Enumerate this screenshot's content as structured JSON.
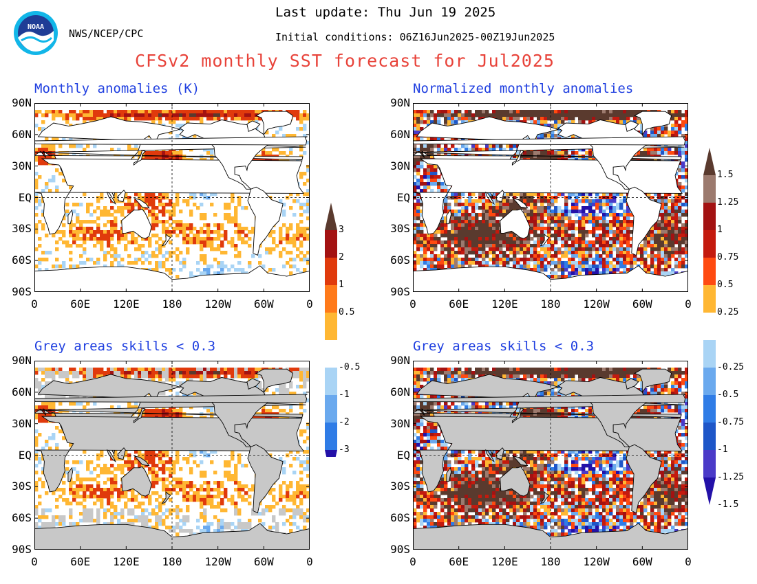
{
  "header": {
    "agency": "NWS/NCEP/CPC",
    "last_update": "Last update: Thu Jun 19 2025",
    "init_conditions": "Initial conditions: 06Z16Jun2025-00Z19Jun2025",
    "title": "CFSv2 monthly SST forecast for Jul2025",
    "logo_text": "NOAA"
  },
  "panels": [
    {
      "id": "tl",
      "title": "Monthly anomalies (K)"
    },
    {
      "id": "tr",
      "title": "Normalized monthly anomalies"
    },
    {
      "id": "bl",
      "title": "Grey areas skills < 0.3"
    },
    {
      "id": "br",
      "title": "Grey areas skills < 0.3"
    }
  ],
  "axes": {
    "y_ticks": [
      "90N",
      "60N",
      "30N",
      "EQ",
      "30S",
      "60S",
      "90S"
    ],
    "x_ticks": [
      "0",
      "60E",
      "120E",
      "180",
      "120W",
      "60W",
      "0"
    ]
  },
  "colorbars": {
    "anomaly": {
      "labels": [
        "3",
        "2",
        "1",
        "0.5",
        "-0.5",
        "-1",
        "-2",
        "-3"
      ],
      "colors": [
        "#5a3a2e",
        "#a31212",
        "#e03a0c",
        "#ff7a1a",
        "#ffb733",
        "#ffffff",
        "#a9d4f5",
        "#6aa9ee",
        "#2f7ce6",
        "#1e56c8",
        "#2311a8"
      ]
    },
    "normalized": {
      "labels": [
        "1.5",
        "1.25",
        "1",
        "0.75",
        "0.5",
        "0.25",
        "-0.25",
        "-0.5",
        "-0.75",
        "-1",
        "-1.25",
        "-1.5"
      ],
      "colors": [
        "#5a3a2e",
        "#9c7a6e",
        "#a31212",
        "#c41a0e",
        "#ff4a10",
        "#ffb733",
        "#ffffff",
        "#a9d4f5",
        "#6aa9ee",
        "#2f7ce6",
        "#1e56c8",
        "#4a3ac8",
        "#2311a8"
      ]
    }
  },
  "colors": {
    "land": "#ffffff",
    "grey_land": "#c8c8c8",
    "title_red": "#e8433a",
    "panel_title_blue": "#1f3fe0"
  }
}
